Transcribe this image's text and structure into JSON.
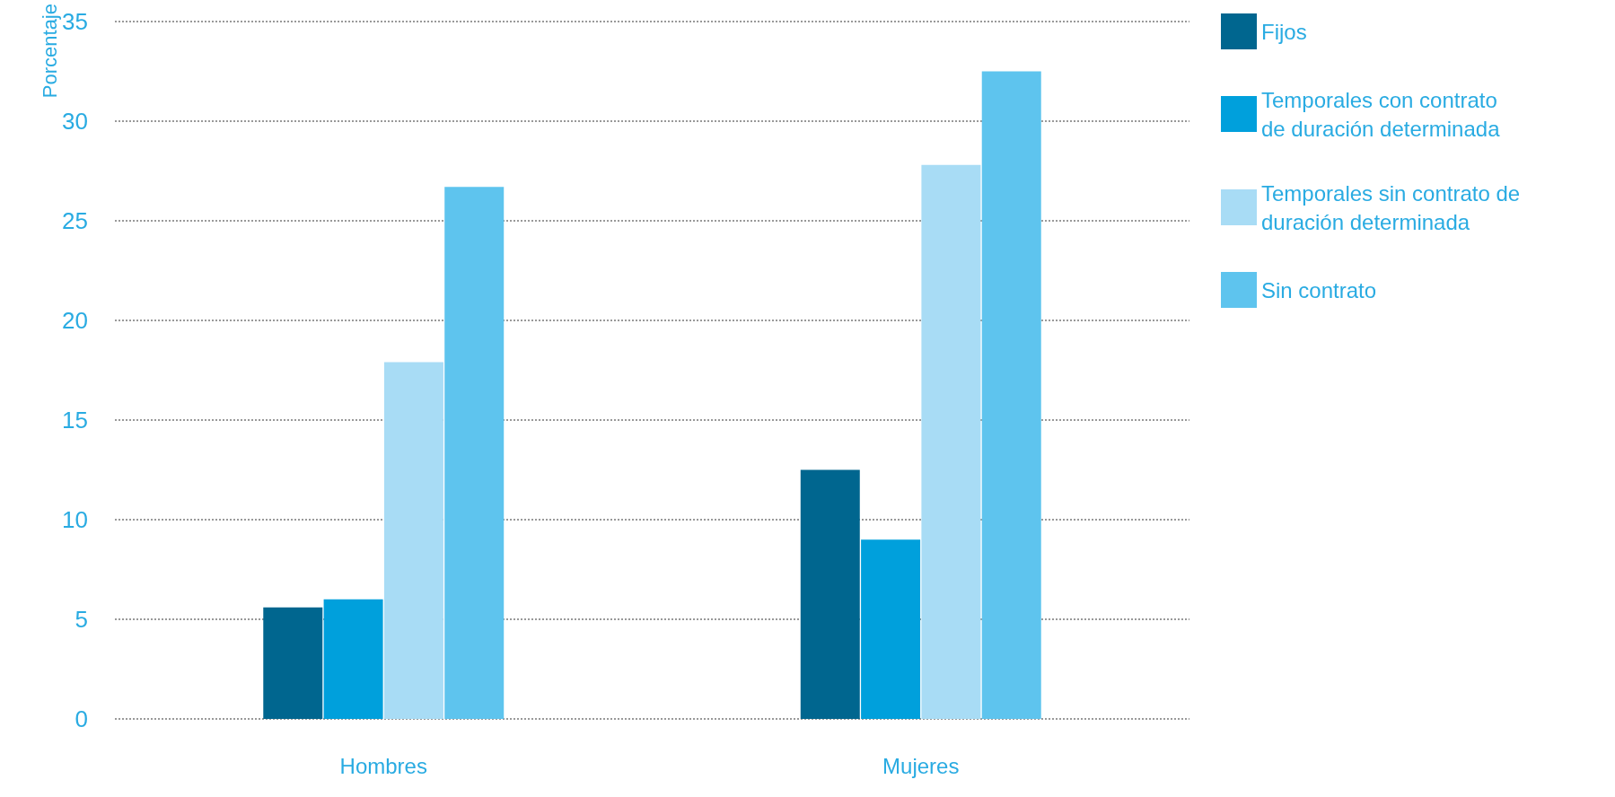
{
  "chart_data": {
    "type": "bar",
    "ylabel": "Porcentaje",
    "categories": [
      "Hombres",
      "Mujeres"
    ],
    "series": [
      {
        "name": "Fijos",
        "color": "#00668f",
        "values": [
          5.6,
          12.5
        ]
      },
      {
        "name": "Temporales con contrato\nde duración determinada",
        "color": "#00a0dc",
        "values": [
          6.0,
          9.0
        ]
      },
      {
        "name": "Temporales sin contrato de\nduración determinada",
        "color": "#a8dcf5",
        "values": [
          17.9,
          27.8
        ]
      },
      {
        "name": "Sin contrato",
        "color": "#5ec4ee",
        "values": [
          26.7,
          32.5
        ]
      }
    ],
    "ylim": [
      0,
      35
    ],
    "yticks": [
      0,
      5,
      10,
      15,
      20,
      25,
      30,
      35
    ],
    "grid": "y",
    "legend": "right"
  }
}
